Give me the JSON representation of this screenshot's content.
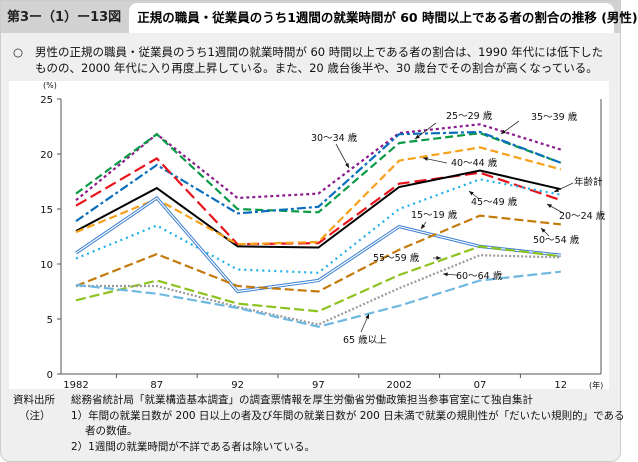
{
  "figure_number": "第3ー（1）ー13図",
  "title": "正規の職員・従業員のうち1週間の就業時間が 60 時間以上である者の割合の推移 (男性)",
  "lead_marker": "○",
  "lead_text": "男性の正規の職員・従業員のうち1週間の就業時間が 60 時間以上である者の割合は、1990 年代には低下したものの、2000 年代に入り再度上昇している。また、20 歳台後半や、30 歳台でその割合が高くなっている。",
  "chart_data": {
    "type": "line",
    "ylabel": "(%)",
    "xlabel": "(年)",
    "ylim": [
      0,
      25
    ],
    "yticks": [
      "0",
      "5",
      "10",
      "15",
      "20",
      "25"
    ],
    "categories": [
      "1982",
      "87",
      "92",
      "97",
      "2002",
      "07",
      "12"
    ],
    "grid": false,
    "series": [
      {
        "name": "35～39 歳",
        "color": "#8b1a8b",
        "dash": "3,3",
        "values": [
          15.8,
          21.8,
          16.0,
          16.4,
          21.9,
          22.7,
          20.4
        ]
      },
      {
        "name": "30～34 歳",
        "color": "#0a9a46",
        "dash": "8,4",
        "values": [
          16.4,
          21.8,
          15.0,
          14.7,
          21.0,
          21.9,
          19.2
        ]
      },
      {
        "name": "25～29 歳",
        "color": "#0a6ebd",
        "dash": "9,3,3,3",
        "values": [
          13.9,
          19.0,
          14.6,
          15.2,
          21.8,
          22.0,
          19.2
        ]
      },
      {
        "name": "20～24 歳",
        "color": "#e8141c",
        "dash": "12,5",
        "values": [
          15.3,
          19.6,
          11.8,
          11.9,
          17.3,
          18.3,
          15.8
        ]
      },
      {
        "name": "年齢計",
        "color": "#000000",
        "dash": "",
        "values": [
          13.0,
          16.9,
          11.6,
          11.5,
          17.0,
          18.5,
          16.8
        ]
      },
      {
        "name": "40～44 歳",
        "color": "#f7a11a",
        "dash": "8,4",
        "values": [
          12.9,
          15.9,
          11.8,
          12.0,
          19.4,
          20.6,
          18.6
        ]
      },
      {
        "name": "45～49 歳",
        "color": "#1cb0e8",
        "dash": "2,4",
        "values": [
          10.5,
          13.5,
          9.5,
          9.2,
          15.0,
          17.7,
          16.3
        ]
      },
      {
        "name": "15～19 歳",
        "color": "#3b7fd0",
        "dash": "double",
        "values": [
          11.0,
          16.0,
          7.5,
          8.5,
          13.4,
          11.6,
          10.8
        ]
      },
      {
        "name": "50～54 歳",
        "color": "#c47a0c",
        "dash": "9,4",
        "values": [
          8.0,
          10.9,
          8.0,
          7.5,
          11.3,
          14.4,
          13.6
        ]
      },
      {
        "name": "55～59 歳",
        "color": "#8dc21f",
        "dash": "10,4",
        "values": [
          6.7,
          8.5,
          6.4,
          5.7,
          9.0,
          11.6,
          10.7
        ]
      },
      {
        "name": "60～64 歳",
        "color": "#9a9a9a",
        "dash": "2,2",
        "values": [
          8.0,
          8.0,
          6.1,
          4.5,
          7.8,
          10.8,
          10.6
        ]
      },
      {
        "name": "65 歳以上",
        "color": "#6fb8e0",
        "dash": "10,4",
        "values": [
          8.1,
          7.3,
          6.0,
          4.3,
          6.2,
          8.5,
          9.3
        ]
      }
    ]
  },
  "source_label": "資料出所",
  "source_text": "総務省統計局「就業構造基本調査」の調査票情報を厚生労働省労働政策担当参事官室にて独自集計",
  "notes_label": "（注）",
  "notes": [
    "1）年間の就業日数が 200 日以上の者及び年間の就業日数が 200 日未満で就業の規則性が「だいたい規則的」である",
    "者の数値。",
    "2）1週間の就業時間が不詳である者は除いている。"
  ]
}
